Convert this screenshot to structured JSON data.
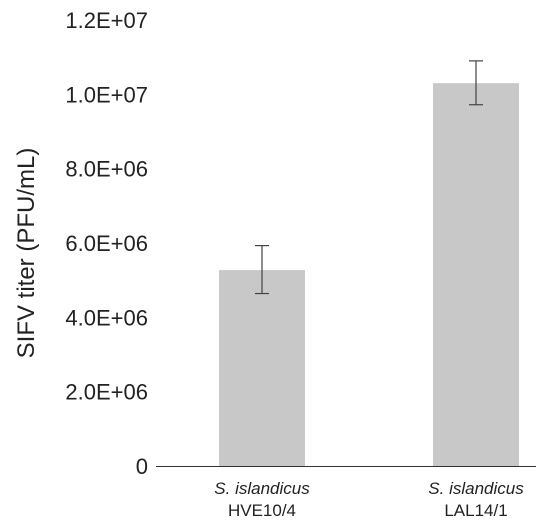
{
  "chart_data": {
    "type": "bar",
    "title": "",
    "xlabel": "",
    "ylabel": "SIFV titer (PFU/mL)",
    "ylim": [
      0,
      12000000
    ],
    "yticks": [
      {
        "value": 0,
        "label": "0"
      },
      {
        "value": 2000000,
        "label": "2.0E+06"
      },
      {
        "value": 4000000,
        "label": "4.0E+06"
      },
      {
        "value": 6000000,
        "label": "6.0E+06"
      },
      {
        "value": 8000000,
        "label": "8.0E+06"
      },
      {
        "value": 10000000,
        "label": "1.0E+07"
      },
      {
        "value": 12000000,
        "label": "1.2E+07"
      }
    ],
    "categories": [
      {
        "species": "S. islandicus",
        "strain": "HVE10/4"
      },
      {
        "species": "S. islandicus",
        "strain": "LAL14/1"
      }
    ],
    "values": [
      5270000,
      10300000
    ],
    "error_bars": [
      {
        "low": 4640000,
        "high": 5930000
      },
      {
        "low": 9720000,
        "high": 10900000
      }
    ],
    "grid": false,
    "colors": {
      "bar": "#c8c8c8",
      "error": "#444444",
      "axis": "#333333",
      "text": "#222222"
    }
  }
}
